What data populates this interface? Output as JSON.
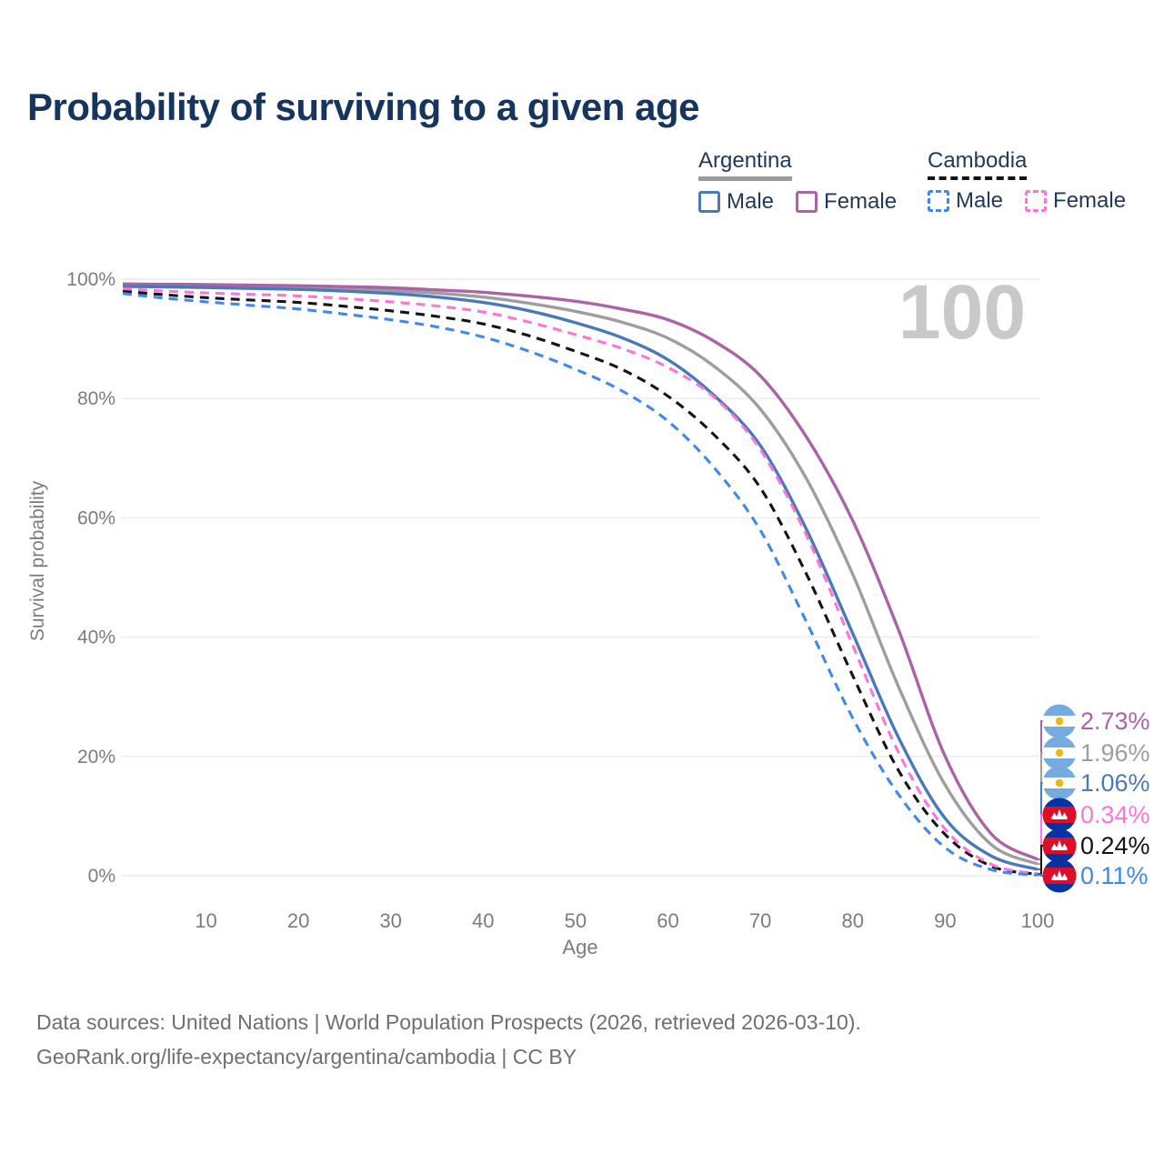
{
  "title": "Probability of surviving to a given age",
  "watermark_age": "100",
  "legend": {
    "groups": [
      {
        "label": "Argentina",
        "underline_color": "#9a9a9a",
        "underline_style": "solid",
        "items": [
          {
            "label": "Male",
            "color": "#4a79b8",
            "dash": false
          },
          {
            "label": "Female",
            "color": "#ac62a7",
            "dash": false
          }
        ]
      },
      {
        "label": "Cambodia",
        "underline_color": "#141414",
        "underline_style": "dashed",
        "items": [
          {
            "label": "Male",
            "color": "#3f88f0",
            "dash": true
          },
          {
            "label": "Female",
            "color": "#ff74d8",
            "dash": true
          }
        ]
      }
    ]
  },
  "axes": {
    "ylabel": "Survival probability",
    "xlabel": "Age",
    "yticks": [
      0,
      20,
      40,
      60,
      80,
      100
    ],
    "ytick_suffix": "%",
    "xticks": [
      10,
      20,
      30,
      40,
      50,
      60,
      70,
      80,
      90,
      100
    ],
    "xlim": [
      1,
      100
    ],
    "ylim": [
      0,
      100
    ],
    "grid": "horizontal"
  },
  "footer": {
    "line1": "Data sources: United Nations | World Population Prospects (2026, retrieved 2026-03-10).",
    "line2": "GeoRank.org/life-expectancy/argentina/cambodia | CC BY"
  },
  "chart_data": {
    "type": "line",
    "title": "Probability of surviving to a given age",
    "xlabel": "Age",
    "ylabel": "Survival probability",
    "xlim": [
      1,
      100
    ],
    "ylim": [
      0,
      100
    ],
    "legend_position": "top-right",
    "x": [
      1,
      5,
      10,
      15,
      20,
      25,
      30,
      35,
      40,
      45,
      50,
      55,
      60,
      65,
      70,
      75,
      80,
      85,
      90,
      95,
      100
    ],
    "series": [
      {
        "name": "Argentina Female",
        "country": "Argentina",
        "sex": "Female",
        "color": "#ac62a7",
        "style": "solid",
        "flag": "ar",
        "end_label": "2.73%",
        "values": [
          99.2,
          99.15,
          99.1,
          99.0,
          98.9,
          98.75,
          98.55,
          98.2,
          97.8,
          97.15,
          96.3,
          95.0,
          93.2,
          89.6,
          83.8,
          73.5,
          59.5,
          41.0,
          20.0,
          7.0,
          2.73
        ]
      },
      {
        "name": "Argentina (both sexes)",
        "country": "Argentina",
        "sex": "Both",
        "color": "#9e9e9e",
        "style": "solid",
        "flag": "ar",
        "end_label": "1.96%",
        "values": [
          99.0,
          98.95,
          98.85,
          98.72,
          98.6,
          98.4,
          98.1,
          97.65,
          97.0,
          95.95,
          94.6,
          92.8,
          90.1,
          85.4,
          78.2,
          66.5,
          50.5,
          31.5,
          15.2,
          5.2,
          1.96
        ]
      },
      {
        "name": "Argentina Male",
        "country": "Argentina",
        "sex": "Male",
        "color": "#4a79b8",
        "style": "solid",
        "flag": "ar",
        "end_label": "1.06%",
        "values": [
          98.8,
          98.72,
          98.6,
          98.45,
          98.3,
          98.0,
          97.6,
          97.0,
          96.1,
          94.7,
          92.7,
          90.2,
          86.5,
          80.5,
          72.1,
          58.0,
          40.6,
          23.0,
          9.6,
          3.3,
          1.06
        ]
      },
      {
        "name": "Cambodia Female",
        "country": "Cambodia",
        "sex": "Female",
        "color": "#ff74d8",
        "style": "dashed",
        "flag": "kh",
        "end_label": "0.34%",
        "values": [
          98.4,
          98.05,
          97.7,
          97.45,
          97.2,
          96.75,
          96.2,
          95.5,
          94.5,
          92.8,
          90.7,
          88.4,
          85.2,
          80.2,
          71.4,
          57.0,
          38.6,
          20.5,
          7.8,
          1.9,
          0.34
        ]
      },
      {
        "name": "Cambodia (both sexes)",
        "country": "Cambodia",
        "sex": "Both",
        "color": "#141414",
        "style": "dashed",
        "flag": "kh",
        "end_label": "0.24%",
        "values": [
          98.0,
          97.45,
          96.9,
          96.5,
          96.1,
          95.45,
          94.7,
          93.75,
          92.5,
          90.5,
          87.9,
          84.9,
          80.4,
          73.9,
          65.0,
          50.5,
          33.5,
          17.5,
          6.9,
          1.6,
          0.24
        ]
      },
      {
        "name": "Cambodia Male",
        "country": "Cambodia",
        "sex": "Male",
        "color": "#3f88f0",
        "style": "dashed",
        "flag": "kh",
        "end_label": "0.11%",
        "values": [
          97.6,
          96.9,
          96.2,
          95.6,
          95.0,
          94.15,
          93.2,
          92.0,
          90.3,
          87.9,
          84.9,
          81.3,
          76.2,
          68.4,
          57.9,
          42.5,
          26.4,
          13.5,
          4.7,
          1.0,
          0.11
        ]
      }
    ]
  },
  "flag_colors": {
    "ar_blue": "#74ACDF",
    "ar_white": "#ffffff",
    "ar_sun": "#F6B40E",
    "kh_blue": "#0633a1",
    "kh_red": "#dc0e2a",
    "kh_white": "#ffffff"
  }
}
